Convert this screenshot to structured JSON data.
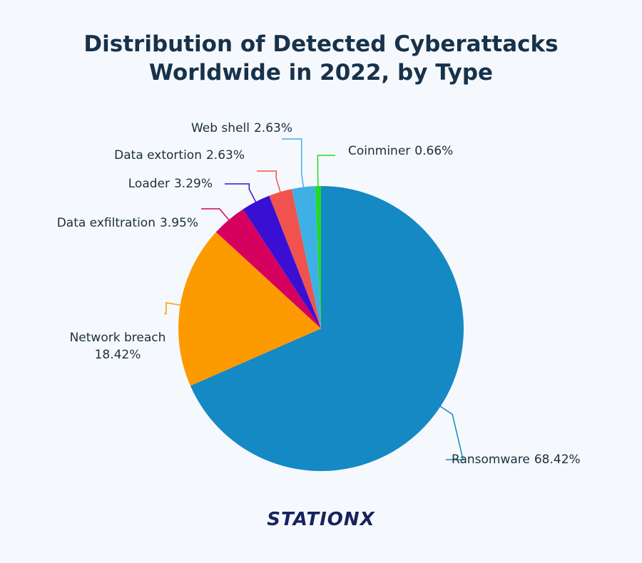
{
  "chart_data": {
    "type": "pie",
    "title": "Distribution of Detected Cyberattacks Worldwide in 2022, by Type",
    "categories": [
      "Ransomware",
      "Network breach",
      "Data exfiltration",
      "Loader",
      "Data extortion",
      "Web shell",
      "Coinminer"
    ],
    "values": [
      68.42,
      18.42,
      3.95,
      3.29,
      2.63,
      2.63,
      0.66
    ],
    "value_labels": [
      "68.42%",
      "18.42%",
      "3.95%",
      "3.29%",
      "2.63%",
      "2.63%",
      "0.66%"
    ],
    "colors": [
      "#1589c3",
      "#fd9a00",
      "#d6005f",
      "#3a0fd4",
      "#f0534e",
      "#3fb0e6",
      "#22d82a"
    ]
  },
  "footer": {
    "logo": "STATIONX"
  }
}
